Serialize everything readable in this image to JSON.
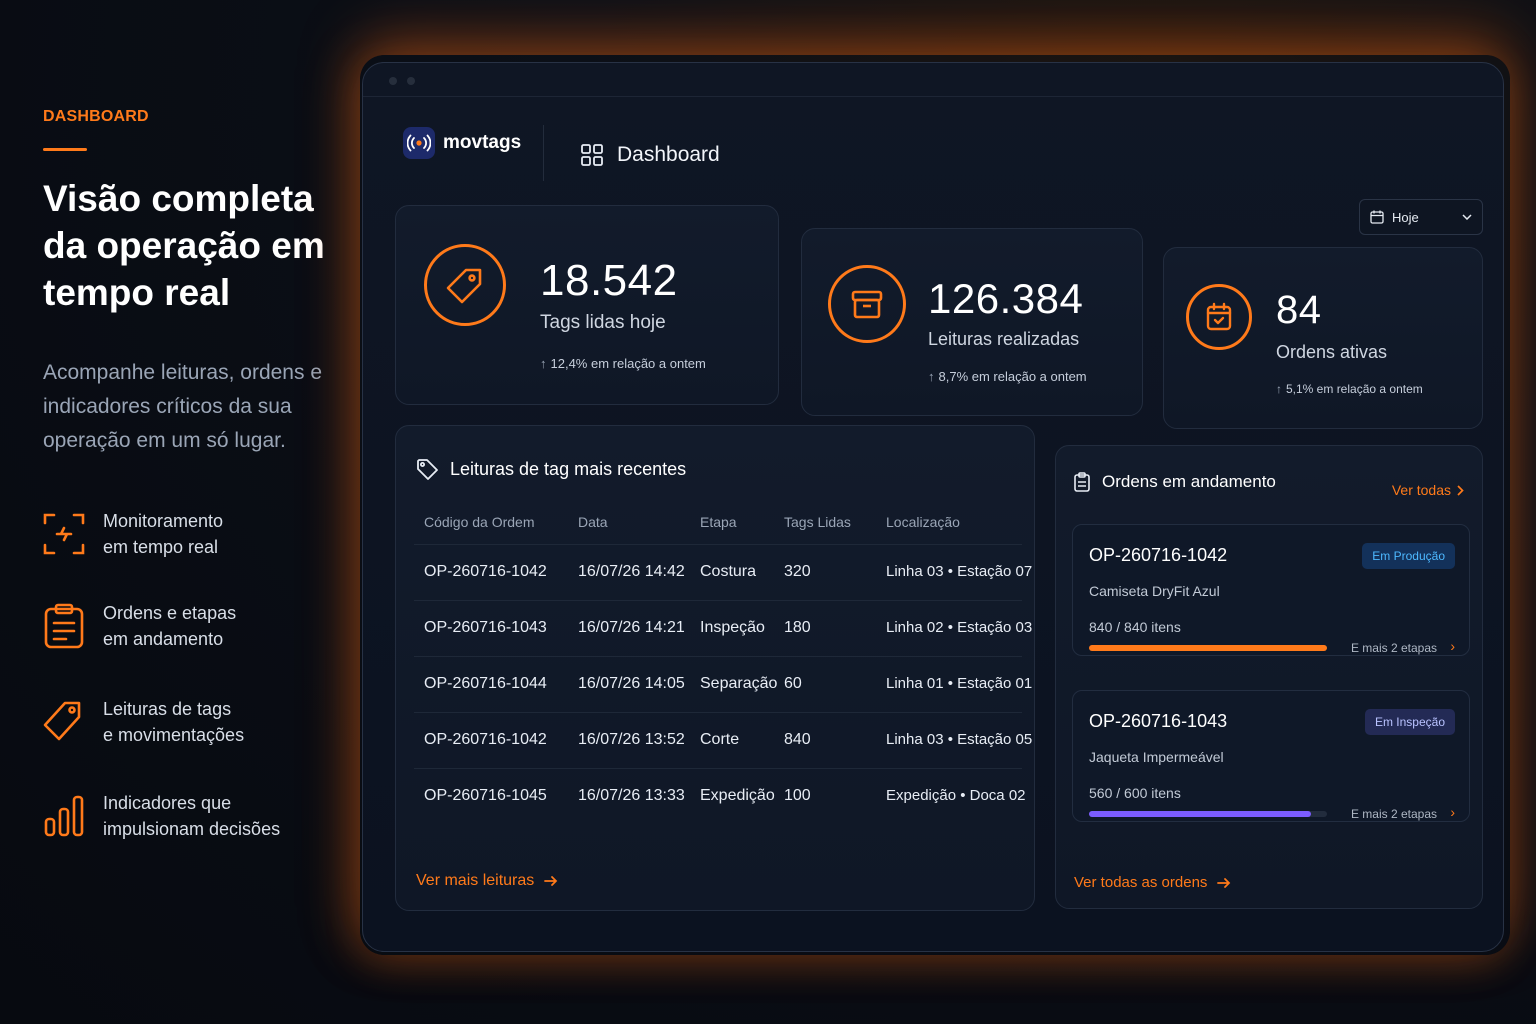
{
  "left": {
    "kicker": "DASHBOARD",
    "headline": "Visão completa da operação em tempo real",
    "subtitle": "Acompanhe leituras, ordens e indicadores críticos da sua operação em um só lugar.",
    "features": [
      {
        "icon": "scan-icon",
        "line1": "Monitoramento",
        "line2": "em tempo real"
      },
      {
        "icon": "clipboard-icon",
        "line1": "Ordens e etapas",
        "line2": "em andamento"
      },
      {
        "icon": "tag-icon",
        "line1": "Leituras de tags",
        "line2": "e movimentações"
      },
      {
        "icon": "bar-chart-icon",
        "line1": "Indicadores que",
        "line2": "impulsionam decisões"
      }
    ]
  },
  "app": {
    "brand": "movtags",
    "nav_label": "Dashboard",
    "date_filter": "Hoje",
    "colors": {
      "accent": "#ff7a1a",
      "purple": "#7b5cff",
      "background": "#0b1220"
    },
    "kpis": [
      {
        "icon": "tag-icon",
        "value": "18.542",
        "label": "Tags lidas hoje",
        "delta": "12,4% em relação a ontem"
      },
      {
        "icon": "box-icon",
        "value": "126.384",
        "label": "Leituras realizadas",
        "delta": "8,7% em relação a ontem"
      },
      {
        "icon": "calendar-check-icon",
        "value": "84",
        "label": "Ordens ativas",
        "delta": "5,1% em relação a ontem"
      }
    ],
    "readings": {
      "title": "Leituras de tag mais recentes",
      "columns": [
        "Código da Ordem",
        "Data",
        "Etapa",
        "Tags Lidas",
        "Localização"
      ],
      "rows": [
        [
          "OP-260716-1042",
          "16/07/26 14:42",
          "Costura",
          "320",
          "Linha 03 • Estação 07"
        ],
        [
          "OP-260716-1043",
          "16/07/26 14:21",
          "Inspeção",
          "180",
          "Linha 02 • Estação 03"
        ],
        [
          "OP-260716-1044",
          "16/07/26 14:05",
          "Separação",
          "60",
          "Linha 01 • Estação 01"
        ],
        [
          "OP-260716-1042",
          "16/07/26 13:52",
          "Corte",
          "840",
          "Linha 03 • Estação 05"
        ],
        [
          "OP-260716-1045",
          "16/07/26 13:33",
          "Expedição",
          "100",
          "Expedição • Doca 02"
        ]
      ],
      "more_link": "Ver mais leituras"
    },
    "orders": {
      "title": "Ordens em andamento",
      "see_all": "Ver todas",
      "items": [
        {
          "code": "OP-260716-1042",
          "status": "Em Produção",
          "product": "Camiseta DryFit Azul",
          "qty": "840 / 840 itens",
          "progress": 1.0,
          "more": "E mais 2 etapas"
        },
        {
          "code": "OP-260716-1043",
          "status": "Em Inspeção",
          "product": "Jaqueta Impermeável",
          "qty": "560 / 600 itens",
          "progress": 0.933,
          "more": "E mais 2 etapas"
        }
      ],
      "all_link": "Ver todas as ordens"
    }
  }
}
